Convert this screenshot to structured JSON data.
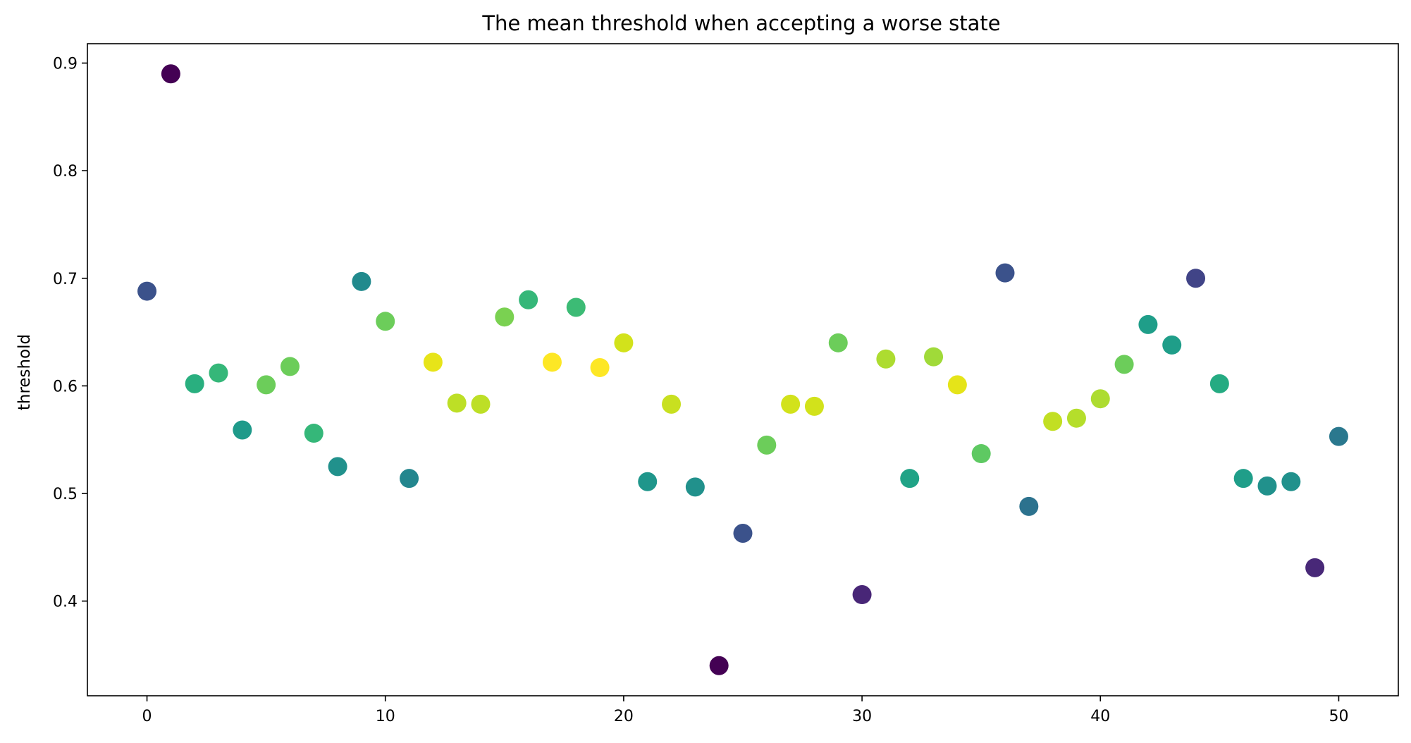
{
  "chart_data": {
    "type": "scatter",
    "title": "The mean threshold when accepting a worse state",
    "xlabel": "",
    "ylabel": "threshold",
    "xlim": [
      -2.5,
      52.5
    ],
    "ylim": [
      0.312,
      0.918
    ],
    "xticks": [
      0,
      10,
      20,
      30,
      40,
      50
    ],
    "yticks": [
      0.4,
      0.5,
      0.6,
      0.7,
      0.8,
      0.9
    ],
    "xtick_labels": [
      "0",
      "10",
      "20",
      "30",
      "40",
      "50"
    ],
    "ytick_labels": [
      "0.4",
      "0.5",
      "0.6",
      "0.7",
      "0.8",
      "0.9"
    ],
    "grid": false,
    "colormap": "viridis",
    "points": [
      {
        "x": 0,
        "y": 0.688,
        "color": "#3b528b"
      },
      {
        "x": 1,
        "y": 0.89,
        "color": "#440154"
      },
      {
        "x": 2,
        "y": 0.602,
        "color": "#29af7f"
      },
      {
        "x": 3,
        "y": 0.612,
        "color": "#35b779"
      },
      {
        "x": 4,
        "y": 0.559,
        "color": "#1f9a8a"
      },
      {
        "x": 5,
        "y": 0.601,
        "color": "#6ccd5a"
      },
      {
        "x": 6,
        "y": 0.618,
        "color": "#6ccd5a"
      },
      {
        "x": 7,
        "y": 0.556,
        "color": "#35b779"
      },
      {
        "x": 8,
        "y": 0.525,
        "color": "#21918c"
      },
      {
        "x": 9,
        "y": 0.697,
        "color": "#218a8d"
      },
      {
        "x": 10,
        "y": 0.66,
        "color": "#6ccd5a"
      },
      {
        "x": 11,
        "y": 0.514,
        "color": "#23868e"
      },
      {
        "x": 12,
        "y": 0.622,
        "color": "#e7e419"
      },
      {
        "x": 13,
        "y": 0.584,
        "color": "#bddf26"
      },
      {
        "x": 14,
        "y": 0.583,
        "color": "#bddf26"
      },
      {
        "x": 15,
        "y": 0.664,
        "color": "#7ad151"
      },
      {
        "x": 16,
        "y": 0.68,
        "color": "#35b779"
      },
      {
        "x": 17,
        "y": 0.622,
        "color": "#fde725"
      },
      {
        "x": 18,
        "y": 0.673,
        "color": "#3cbb75"
      },
      {
        "x": 19,
        "y": 0.617,
        "color": "#fde725"
      },
      {
        "x": 20,
        "y": 0.64,
        "color": "#d2e21b"
      },
      {
        "x": 21,
        "y": 0.511,
        "color": "#1f968b"
      },
      {
        "x": 22,
        "y": 0.583,
        "color": "#c8e020"
      },
      {
        "x": 23,
        "y": 0.506,
        "color": "#21918c"
      },
      {
        "x": 24,
        "y": 0.34,
        "color": "#440154"
      },
      {
        "x": 25,
        "y": 0.463,
        "color": "#3b528b"
      },
      {
        "x": 26,
        "y": 0.545,
        "color": "#6ccd5a"
      },
      {
        "x": 27,
        "y": 0.583,
        "color": "#d2e21b"
      },
      {
        "x": 28,
        "y": 0.581,
        "color": "#d2e21b"
      },
      {
        "x": 29,
        "y": 0.64,
        "color": "#6ccd5a"
      },
      {
        "x": 30,
        "y": 0.406,
        "color": "#482677"
      },
      {
        "x": 31,
        "y": 0.625,
        "color": "#addc30"
      },
      {
        "x": 32,
        "y": 0.514,
        "color": "#20a386"
      },
      {
        "x": 33,
        "y": 0.627,
        "color": "#a0da39"
      },
      {
        "x": 34,
        "y": 0.601,
        "color": "#e5e419"
      },
      {
        "x": 35,
        "y": 0.537,
        "color": "#5ec962"
      },
      {
        "x": 36,
        "y": 0.705,
        "color": "#3b528b"
      },
      {
        "x": 37,
        "y": 0.488,
        "color": "#2c728e"
      },
      {
        "x": 38,
        "y": 0.567,
        "color": "#c2df23"
      },
      {
        "x": 39,
        "y": 0.57,
        "color": "#b5de2b"
      },
      {
        "x": 40,
        "y": 0.588,
        "color": "#addc30"
      },
      {
        "x": 41,
        "y": 0.62,
        "color": "#6ccd5a"
      },
      {
        "x": 42,
        "y": 0.657,
        "color": "#1f9e89"
      },
      {
        "x": 43,
        "y": 0.638,
        "color": "#1f9e89"
      },
      {
        "x": 44,
        "y": 0.7,
        "color": "#414487"
      },
      {
        "x": 45,
        "y": 0.602,
        "color": "#25ab82"
      },
      {
        "x": 46,
        "y": 0.514,
        "color": "#1f9e89"
      },
      {
        "x": 47,
        "y": 0.507,
        "color": "#21918c"
      },
      {
        "x": 48,
        "y": 0.511,
        "color": "#21918c"
      },
      {
        "x": 49,
        "y": 0.431,
        "color": "#482878"
      },
      {
        "x": 50,
        "y": 0.553,
        "color": "#2a788e"
      }
    ]
  }
}
